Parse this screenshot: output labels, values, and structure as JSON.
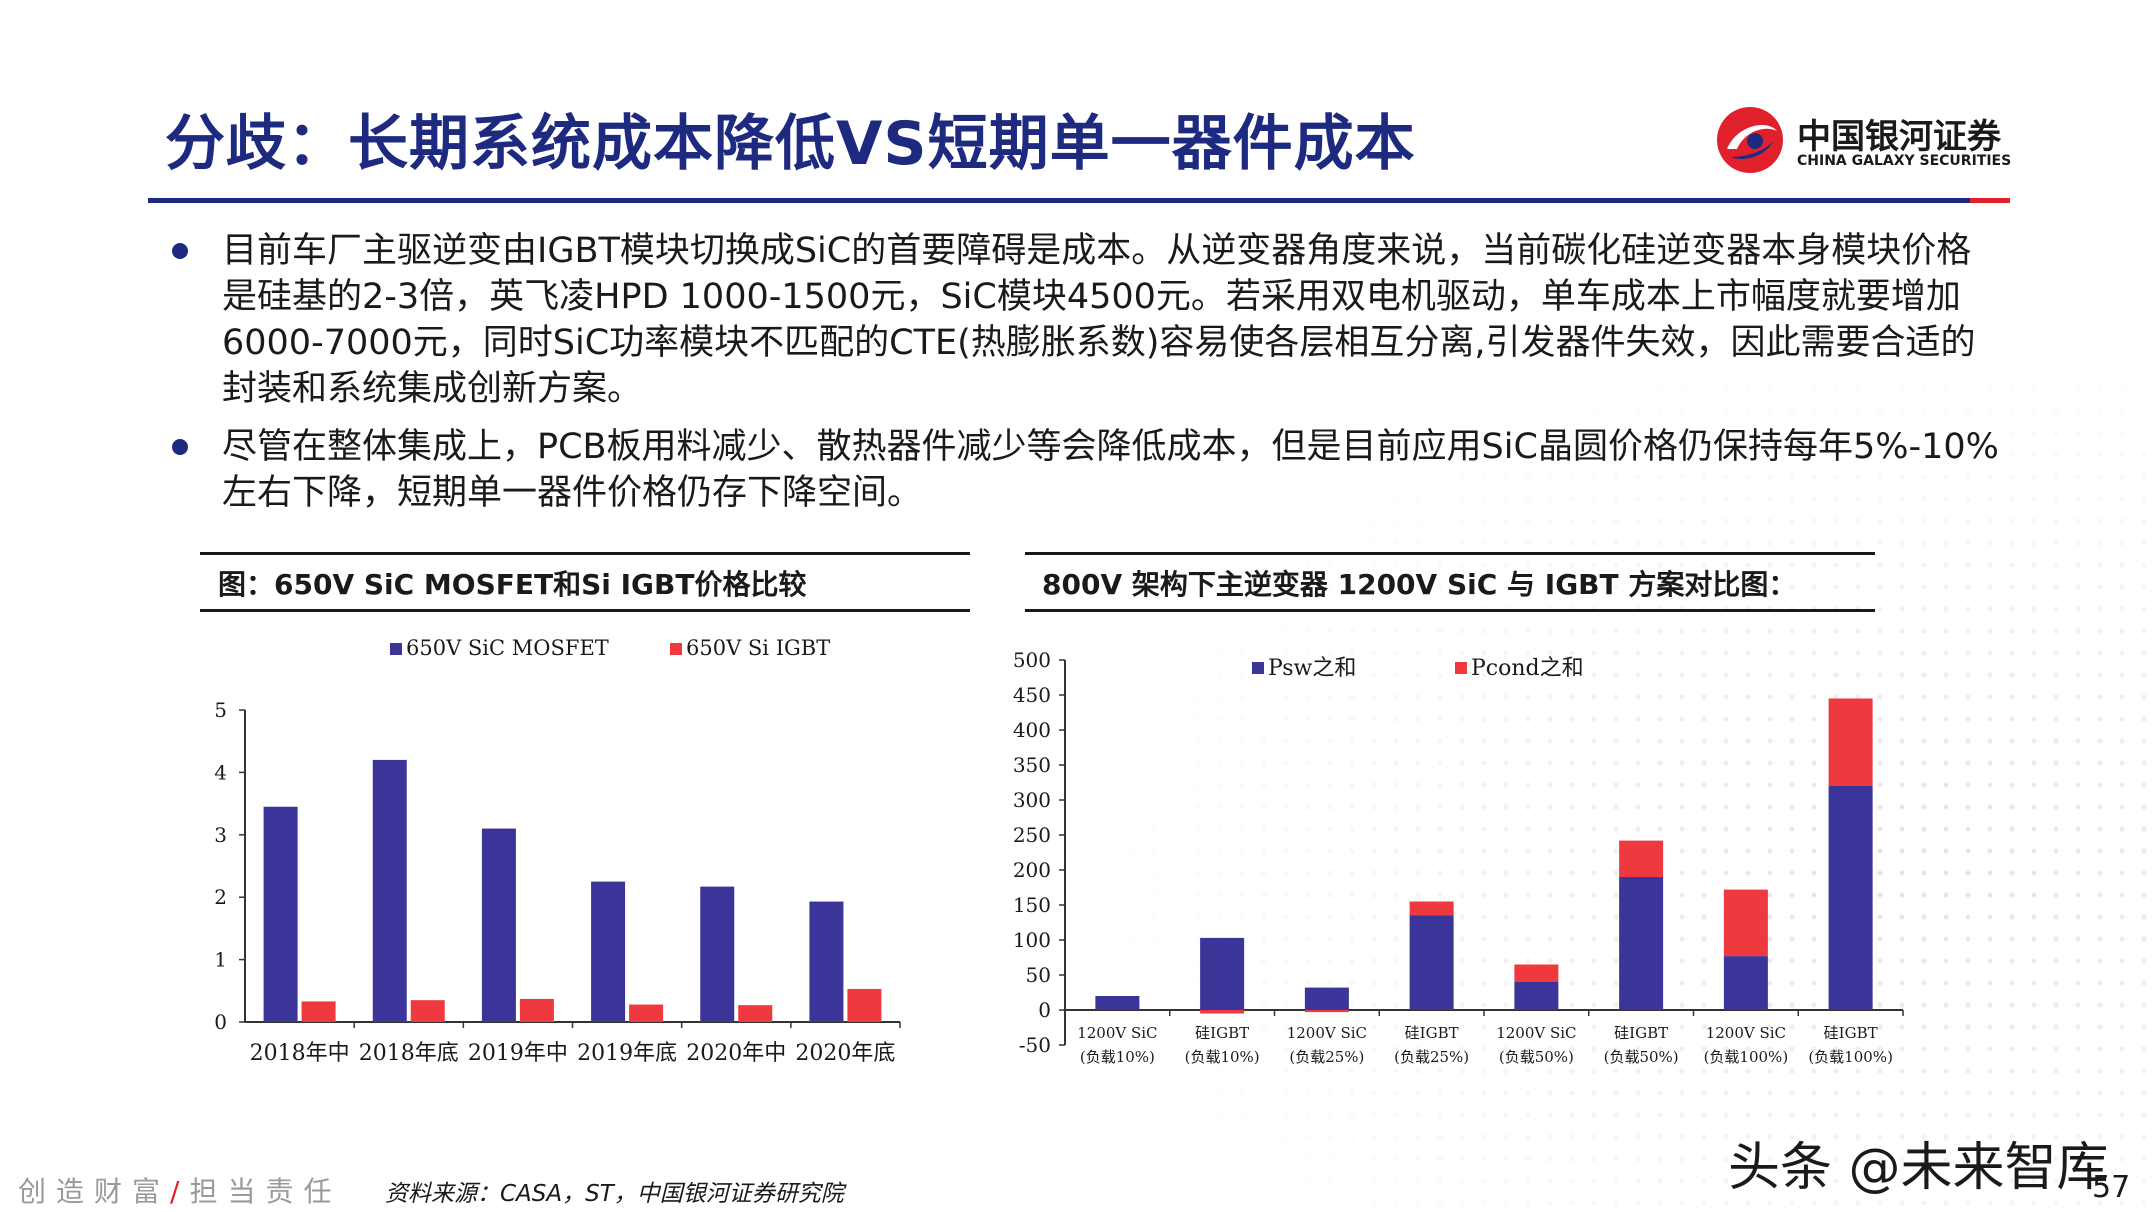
{
  "title": "分歧：长期系统成本降低VS短期单一器件成本",
  "logo": {
    "cn": "中国银河证券",
    "en": "CHINA GALAXY SECURITIES"
  },
  "bullets": [
    "目前车厂主驱逆变由IGBT模块切换成SiC的首要障碍是成本。从逆变器角度来说，当前碳化硅逆变器本身模块价格是硅基的2-3倍，英飞凌HPD 1000-1500元，SiC模块4500元。若采用双电机驱动，单车成本上市幅度就要增加6000-7000元，同时SiC功率模块不匹配的CTE(热膨胀系数)容易使各层相互分离,引发器件失效，因此需要合适的封装和系统集成创新方案。",
    "尽管在整体集成上，PCB板用料减少、散热器件减少等会降低成本，但是目前应用SiC晶圆价格仍保持每年5%-10%左右下降，短期单一器件价格仍存下降空间。"
  ],
  "chart_data": [
    {
      "type": "bar",
      "title": "图：650V SiC MOSFET和Si IGBT价格比较",
      "categories": [
        "2018年中",
        "2018年底",
        "2019年中",
        "2019年底",
        "2020年中",
        "2020年底"
      ],
      "series": [
        {
          "name": "650V SiC MOSFET",
          "color": "#3b3499",
          "values": [
            3.45,
            4.2,
            3.1,
            2.25,
            2.17,
            1.93
          ]
        },
        {
          "name": "650V Si IGBT",
          "color": "#ee3a3f",
          "values": [
            0.33,
            0.35,
            0.37,
            0.28,
            0.27,
            0.53
          ]
        }
      ],
      "ylim": [
        0,
        5
      ],
      "yticks": [
        0,
        1,
        2,
        3,
        4,
        5
      ],
      "legend": "top",
      "grid": false
    },
    {
      "type": "bar",
      "stacked": true,
      "title": "800V 架构下主逆变器 1200V SiC 与 IGBT 方案对比图：",
      "categories": [
        [
          "1200V SiC",
          "(负载10%)"
        ],
        [
          "硅IGBT",
          "(负载10%)"
        ],
        [
          "1200V SiC",
          "(负载25%)"
        ],
        [
          "硅IGBT",
          "(负载25%)"
        ],
        [
          "1200V SiC",
          "(负载50%)"
        ],
        [
          "硅IGBT",
          "(负载50%)"
        ],
        [
          "1200V SiC",
          "(负载100%)"
        ],
        [
          "硅IGBT",
          "(负载100%)"
        ]
      ],
      "series": [
        {
          "name": "Psw之和",
          "color": "#3b3499",
          "values": [
            20,
            103,
            32,
            135,
            40,
            190,
            77,
            320
          ]
        },
        {
          "name": "Pcond之和",
          "color": "#ee3a3f",
          "values": [
            0,
            -5,
            -3,
            20,
            25,
            52,
            95,
            125
          ]
        }
      ],
      "ylim": [
        -50,
        500
      ],
      "yticks": [
        -50,
        0,
        50,
        100,
        150,
        200,
        250,
        300,
        350,
        400,
        450,
        500
      ],
      "legend": "top",
      "grid": false
    }
  ],
  "footer": {
    "motto_left": "创造财富",
    "slash": "/",
    "motto_right": "担当责任",
    "source": "资料来源：CASA，ST，中国银河证券研究院"
  },
  "watermark": "头条 @未来智库",
  "page_number": "57",
  "colors": {
    "brand_blue": "#1d2a80",
    "brand_red": "#e0212c"
  }
}
